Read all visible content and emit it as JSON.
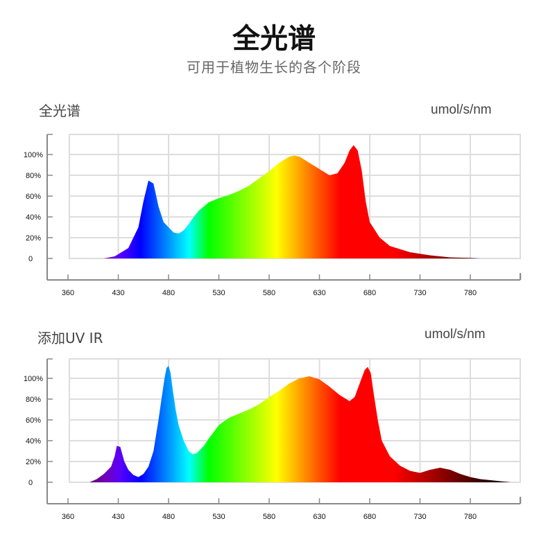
{
  "page": {
    "title": "全光谱",
    "subtitle": "可用于植物生长的各个阶段"
  },
  "chart_data": [
    {
      "type": "area",
      "title": "全光谱",
      "unit": "umol/s/nm",
      "xticks": [
        "360",
        "430",
        "480",
        "530",
        "580",
        "630",
        "680",
        "730",
        "780"
      ],
      "yticks": [
        "0",
        "20%",
        "40%",
        "60%",
        "80%",
        "100%"
      ],
      "ylim": [
        0,
        110
      ],
      "grid": true,
      "fill": "wavelength-color",
      "series": [
        {
          "x": [
            410,
            425,
            440,
            450,
            455,
            460,
            465,
            470,
            475,
            480,
            485,
            490,
            495,
            500,
            505,
            510,
            520,
            530,
            540,
            550,
            560,
            570,
            580,
            590,
            600,
            605,
            610,
            620,
            630,
            640,
            648,
            655,
            660,
            664,
            668,
            672,
            676,
            680,
            690,
            700,
            720,
            740,
            760,
            780,
            790
          ],
          "y": [
            0,
            2,
            10,
            30,
            55,
            75,
            72,
            50,
            35,
            30,
            25,
            24,
            27,
            33,
            40,
            46,
            54,
            58,
            61,
            65,
            70,
            77,
            84,
            92,
            98,
            99,
            98,
            92,
            86,
            80,
            82,
            92,
            104,
            109,
            104,
            85,
            55,
            35,
            20,
            12,
            6,
            3,
            1,
            0.5,
            0
          ]
        }
      ]
    },
    {
      "type": "area",
      "title": "添加UV IR",
      "unit": "umol/s/nm",
      "xticks": [
        "360",
        "430",
        "480",
        "530",
        "580",
        "630",
        "680",
        "730",
        "780"
      ],
      "yticks": [
        "0",
        "20%",
        "40%",
        "60%",
        "80%",
        "100%"
      ],
      "ylim": [
        0,
        110
      ],
      "grid": true,
      "fill": "wavelength-color",
      "series": [
        {
          "x": [
            390,
            400,
            410,
            420,
            425,
            428,
            432,
            436,
            440,
            445,
            450,
            455,
            460,
            465,
            470,
            473,
            476,
            478,
            480,
            482,
            484,
            487,
            490,
            495,
            500,
            504,
            508,
            515,
            520,
            530,
            540,
            550,
            560,
            570,
            580,
            590,
            600,
            610,
            620,
            630,
            640,
            650,
            660,
            665,
            670,
            675,
            678,
            681,
            684,
            688,
            692,
            700,
            710,
            720,
            730,
            740,
            750,
            760,
            770,
            780,
            790,
            800,
            810,
            820
          ],
          "y": [
            0,
            3,
            8,
            15,
            25,
            35,
            34,
            20,
            12,
            7,
            5,
            8,
            15,
            30,
            60,
            80,
            100,
            110,
            112,
            105,
            90,
            70,
            55,
            40,
            30,
            27,
            28,
            35,
            42,
            55,
            62,
            66,
            70,
            75,
            82,
            88,
            95,
            100,
            102,
            99,
            92,
            84,
            78,
            82,
            95,
            108,
            111,
            105,
            85,
            60,
            40,
            25,
            16,
            11,
            9,
            12,
            14,
            12,
            8,
            5,
            3,
            2,
            1,
            0
          ]
        }
      ]
    }
  ]
}
